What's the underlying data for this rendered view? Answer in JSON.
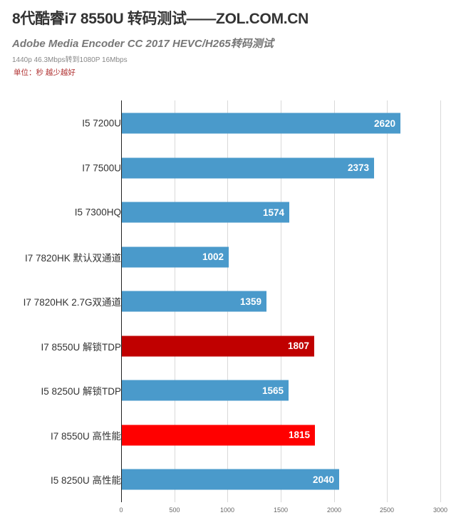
{
  "header": {
    "title": "8代酷睿i7 8550U 转码测试——ZOL.COM.CN",
    "subtitle": "Adobe Media Encoder CC 2017 HEVC/H265转码测试",
    "note": "1440p 46.3Mbps转到1080P 16Mbps",
    "unit": "单位：秒 越少越好"
  },
  "colors": {
    "blue": "#4A9ACB",
    "dark_red": "#C00000",
    "red": "#FF0000",
    "gridline": "#D9D9D9",
    "axis": "#222222",
    "unit_text": "#B03030"
  },
  "chart_data": {
    "type": "bar",
    "orientation": "horizontal",
    "title": "8代酷睿i7 8550U 转码测试——ZOL.COM.CN",
    "subtitle": "Adobe Media Encoder CC 2017 HEVC/H265转码测试",
    "annotations": [
      "1440p 46.3Mbps转到1080P 16Mbps",
      "单位：秒 越少越好"
    ],
    "xlabel": "",
    "ylabel": "",
    "xlim": [
      0,
      3000
    ],
    "x_ticks": [
      "0",
      "500",
      "1000",
      "1500",
      "2000",
      "2500",
      "3000"
    ],
    "grid": true,
    "legend": null,
    "categories": [
      "I5 7200U",
      "I7 7500U",
      "I5 7300HQ",
      "I7 7820HK 默认双通道",
      "I7 7820HK 2.7G双通道",
      "I7 8550U 解锁TDP",
      "I5 8250U 解锁TDP",
      "I7 8550U 高性能",
      "I5 8250U 高性能"
    ],
    "values": [
      2620,
      2373,
      1574,
      1002,
      1359,
      1807,
      1565,
      1815,
      2040
    ],
    "bar_colors": [
      "#4A9ACB",
      "#4A9ACB",
      "#4A9ACB",
      "#4A9ACB",
      "#4A9ACB",
      "#C00000",
      "#4A9ACB",
      "#FF0000",
      "#4A9ACB"
    ],
    "value_labels": [
      "2620",
      "2373",
      "1574",
      "1002",
      "1359",
      "1807",
      "1565",
      "1815",
      "2040"
    ]
  }
}
